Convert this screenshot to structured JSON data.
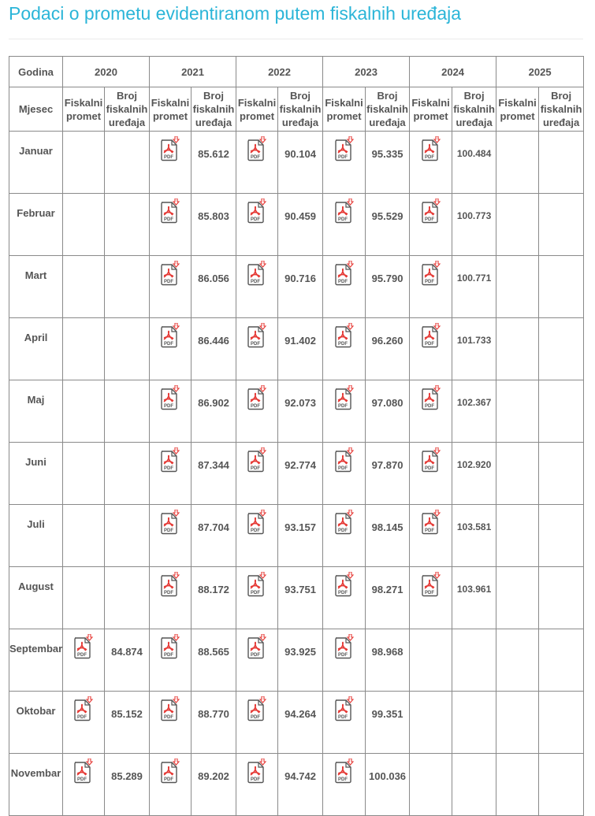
{
  "title": "Podaci o prometu evidentiranom putem fiskalnih uređaja",
  "colors": {
    "title": "#2bb5d8",
    "text": "#555555",
    "pdf_red": "#e53935"
  },
  "table": {
    "year_header": "Godina",
    "month_header": "Mjesec",
    "years": [
      "2020",
      "2021",
      "2022",
      "2023",
      "2024",
      "2025"
    ],
    "sub_headers": {
      "turnover": "Fiskalni promet",
      "devices": "Broj fiskalnih uređaja"
    },
    "pdf_icon": "pdf-download-icon",
    "rows": [
      {
        "month": "Januar",
        "cells": [
          null,
          {
            "pdf": true,
            "count": "85.612"
          },
          {
            "pdf": true,
            "count": "90.104"
          },
          {
            "pdf": true,
            "count": "95.335"
          },
          {
            "pdf": true,
            "count": "100.484"
          },
          null
        ]
      },
      {
        "month": "Februar",
        "cells": [
          null,
          {
            "pdf": true,
            "count": "85.803"
          },
          {
            "pdf": true,
            "count": "90.459"
          },
          {
            "pdf": true,
            "count": "95.529"
          },
          {
            "pdf": true,
            "count": "100.773"
          },
          null
        ]
      },
      {
        "month": "Mart",
        "cells": [
          null,
          {
            "pdf": true,
            "count": "86.056"
          },
          {
            "pdf": true,
            "count": "90.716"
          },
          {
            "pdf": true,
            "count": "95.790"
          },
          {
            "pdf": true,
            "count": "100.771"
          },
          null
        ]
      },
      {
        "month": "April",
        "cells": [
          null,
          {
            "pdf": true,
            "count": "86.446"
          },
          {
            "pdf": true,
            "count": "91.402"
          },
          {
            "pdf": true,
            "count": "96.260"
          },
          {
            "pdf": true,
            "count": "101.733"
          },
          null
        ]
      },
      {
        "month": "Maj",
        "cells": [
          null,
          {
            "pdf": true,
            "count": "86.902"
          },
          {
            "pdf": true,
            "count": "92.073"
          },
          {
            "pdf": true,
            "count": "97.080"
          },
          {
            "pdf": true,
            "count": "102.367"
          },
          null
        ]
      },
      {
        "month": "Juni",
        "cells": [
          null,
          {
            "pdf": true,
            "count": "87.344"
          },
          {
            "pdf": true,
            "count": "92.774"
          },
          {
            "pdf": true,
            "count": "97.870"
          },
          {
            "pdf": true,
            "count": "102.920"
          },
          null
        ]
      },
      {
        "month": "Juli",
        "cells": [
          null,
          {
            "pdf": true,
            "count": "87.704"
          },
          {
            "pdf": true,
            "count": "93.157"
          },
          {
            "pdf": true,
            "count": "98.145"
          },
          {
            "pdf": true,
            "count": "103.581"
          },
          null
        ]
      },
      {
        "month": "August",
        "cells": [
          null,
          {
            "pdf": true,
            "count": "88.172"
          },
          {
            "pdf": true,
            "count": "93.751"
          },
          {
            "pdf": true,
            "count": "98.271"
          },
          {
            "pdf": true,
            "count": "103.961"
          },
          null
        ]
      },
      {
        "month": "Septembar",
        "cells": [
          {
            "pdf": true,
            "count": "84.874"
          },
          {
            "pdf": true,
            "count": "88.565"
          },
          {
            "pdf": true,
            "count": "93.925"
          },
          {
            "pdf": true,
            "count": "98.968"
          },
          null,
          null
        ]
      },
      {
        "month": "Oktobar",
        "cells": [
          {
            "pdf": true,
            "count": "85.152"
          },
          {
            "pdf": true,
            "count": "88.770"
          },
          {
            "pdf": true,
            "count": "94.264"
          },
          {
            "pdf": true,
            "count": "99.351"
          },
          null,
          null
        ]
      },
      {
        "month": "Novembar",
        "cells": [
          {
            "pdf": true,
            "count": "85.289"
          },
          {
            "pdf": true,
            "count": "89.202"
          },
          {
            "pdf": true,
            "count": "94.742"
          },
          {
            "pdf": true,
            "count": "100.036"
          },
          null,
          null
        ]
      }
    ]
  }
}
